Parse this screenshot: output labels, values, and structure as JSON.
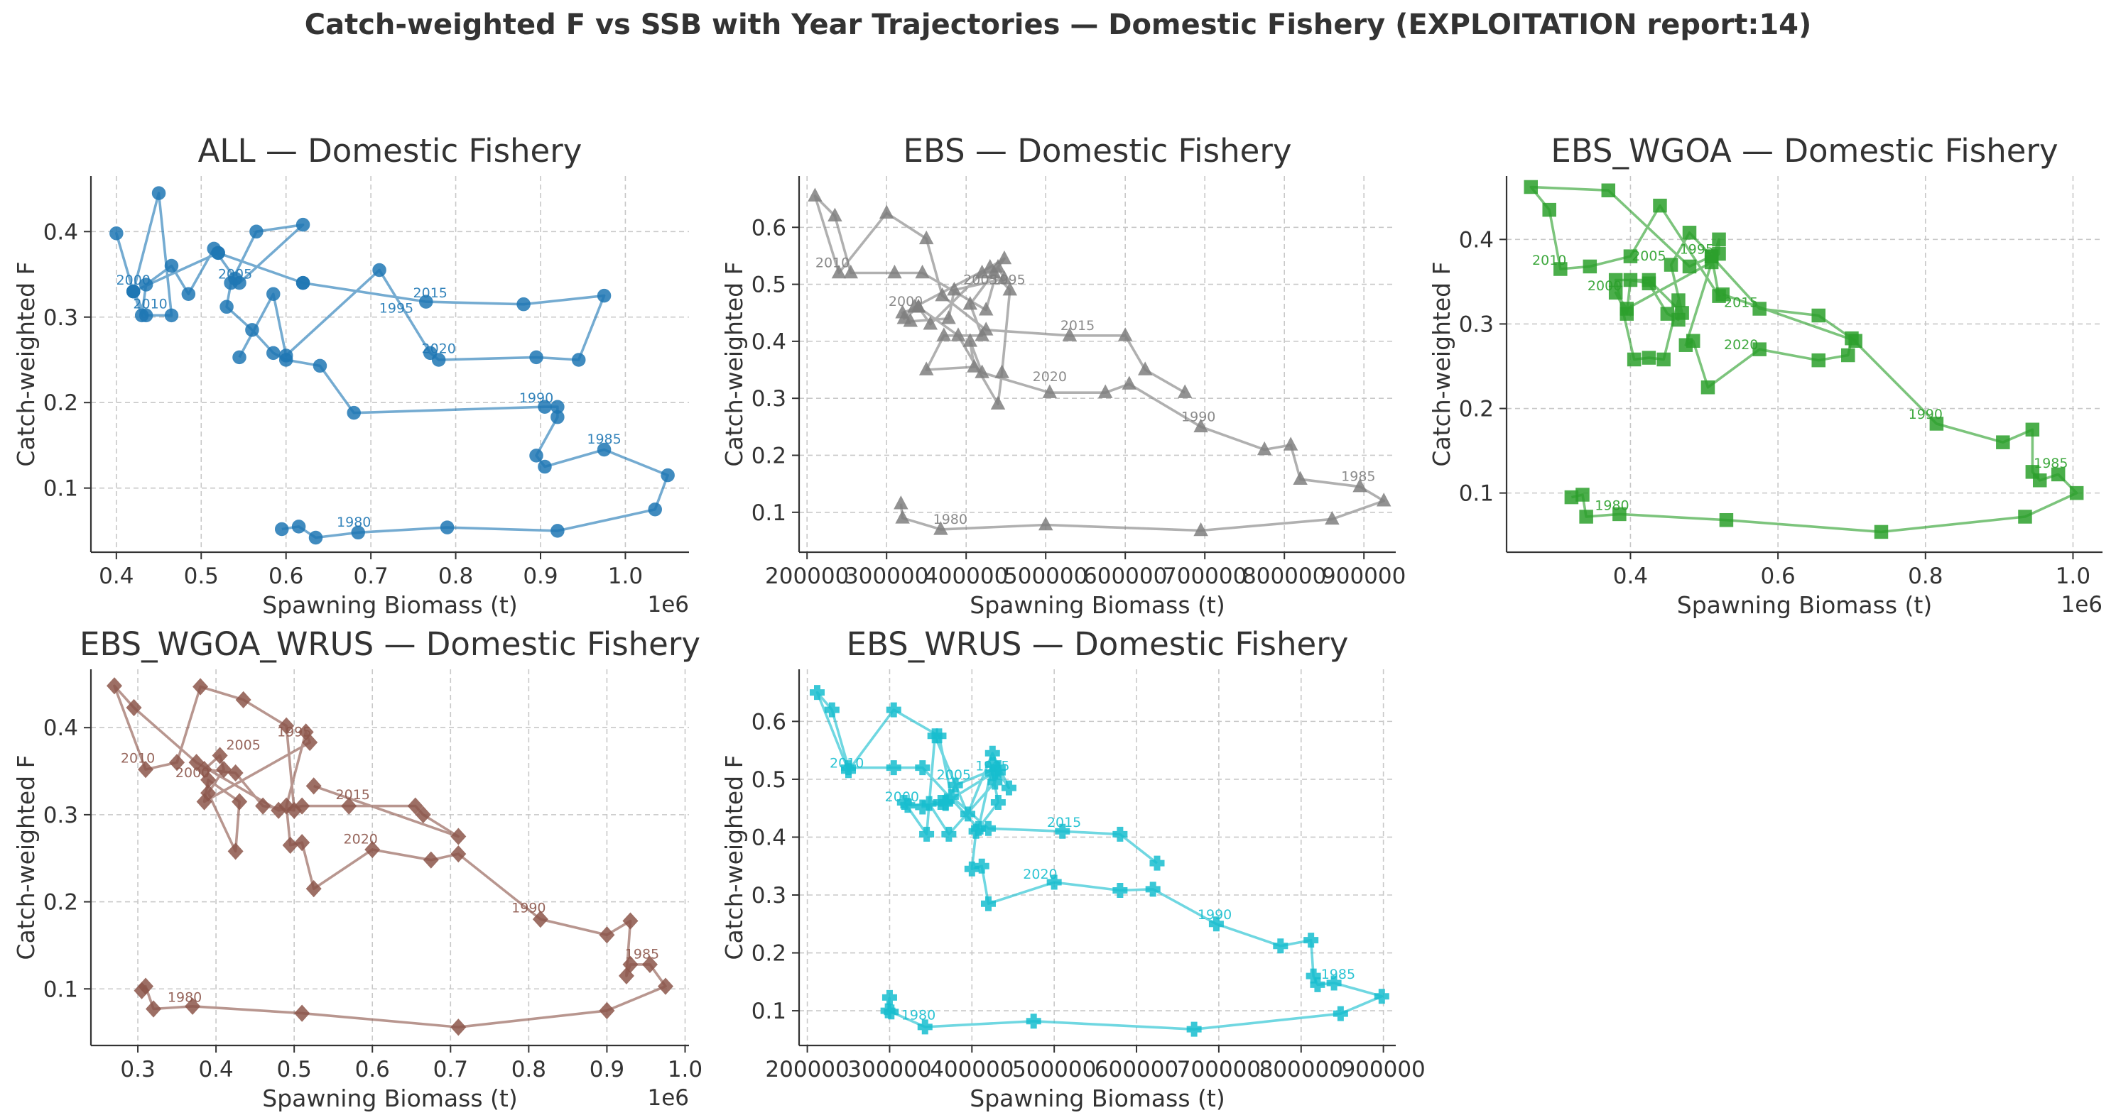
{
  "suptitle": "Catch-weighted F vs SSB with Year Trajectories — Domestic Fishery (EXPLOITATION report:14)",
  "chart_data": [
    {
      "type": "line",
      "title": "ALL — Domestic Fishery",
      "xlabel": "Spawning Biomass (t)",
      "ylabel": "Catch-weighted F",
      "x_offset_label": "1e6",
      "xlim": [
        0.37,
        1.075
      ],
      "ylim": [
        0.025,
        0.465
      ],
      "xticks": [
        0.4,
        0.5,
        0.6,
        0.7,
        0.8,
        0.9,
        1.0
      ],
      "xtick_labels": [
        "0.4",
        "0.5",
        "0.6",
        "0.7",
        "0.8",
        "0.9",
        "1.0"
      ],
      "yticks": [
        0.1,
        0.2,
        0.3,
        0.4
      ],
      "ytick_labels": [
        "0.1",
        "0.2",
        "0.3",
        "0.4"
      ],
      "grid": true,
      "color": "#1f77b4",
      "marker": "circle",
      "series": [
        {
          "x": [
            0.595,
            0.615,
            0.635,
            0.685,
            0.79,
            0.92,
            1.035,
            1.05,
            0.975,
            0.905,
            0.895,
            0.92,
            0.92,
            0.905,
            0.68,
            0.64,
            0.6,
            0.585,
            0.56,
            0.53,
            0.535,
            0.565,
            0.62,
            0.545,
            0.54,
            0.515,
            0.485,
            0.465,
            0.435,
            0.43,
            0.42,
            0.45,
            0.465,
            0.435,
            0.42,
            0.4,
            0.42,
            0.52,
            0.52,
            0.62,
            0.62,
            0.765,
            0.88,
            0.975,
            0.945,
            0.895,
            0.78,
            0.77,
            0.71,
            0.6,
            0.585,
            0.545
          ],
          "y": [
            0.052,
            0.055,
            0.042,
            0.048,
            0.054,
            0.05,
            0.075,
            0.115,
            0.145,
            0.125,
            0.138,
            0.183,
            0.195,
            0.195,
            0.188,
            0.243,
            0.25,
            0.258,
            0.285,
            0.312,
            0.34,
            0.4,
            0.408,
            0.34,
            0.345,
            0.38,
            0.327,
            0.36,
            0.338,
            0.302,
            0.33,
            0.445,
            0.302,
            0.302,
            0.33,
            0.398,
            0.33,
            0.375,
            0.375,
            0.34,
            0.34,
            0.318,
            0.315,
            0.325,
            0.25,
            0.253,
            0.25,
            0.258,
            0.355,
            0.255,
            0.327,
            0.253
          ]
        }
      ],
      "annotations": [
        {
          "text": "1980",
          "x": 0.68,
          "y": 0.055
        },
        {
          "text": "1985",
          "x": 0.975,
          "y": 0.152
        },
        {
          "text": "1990",
          "x": 0.895,
          "y": 0.2
        },
        {
          "text": "1995",
          "x": 0.73,
          "y": 0.305
        },
        {
          "text": "2000",
          "x": 0.42,
          "y": 0.338
        },
        {
          "text": "2005",
          "x": 0.54,
          "y": 0.345
        },
        {
          "text": "2010",
          "x": 0.44,
          "y": 0.31
        },
        {
          "text": "2015",
          "x": 0.77,
          "y": 0.323
        },
        {
          "text": "2020",
          "x": 0.78,
          "y": 0.258
        }
      ]
    },
    {
      "type": "line",
      "title": "EBS — Domestic Fishery",
      "xlabel": "Spawning Biomass (t)",
      "ylabel": "Catch-weighted F",
      "xlim": [
        190000,
        940000
      ],
      "ylim": [
        0.03,
        0.69
      ],
      "xticks": [
        200000,
        300000,
        400000,
        500000,
        600000,
        700000,
        800000,
        900000
      ],
      "xtick_labels": [
        "200000",
        "300000",
        "400000",
        "500000",
        "600000",
        "700000",
        "800000",
        "900000"
      ],
      "yticks": [
        0.1,
        0.2,
        0.3,
        0.4,
        0.5,
        0.6
      ],
      "ytick_labels": [
        "0.1",
        "0.2",
        "0.3",
        "0.4",
        "0.5",
        "0.6"
      ],
      "grid": true,
      "color": "#7f7f7f",
      "marker": "triangle",
      "series": [
        {
          "x": [
            318000,
            320000,
            368000,
            500000,
            695000,
            860000,
            925000,
            895000,
            820000,
            808000,
            775000,
            695000,
            605000,
            575000,
            505000,
            420000,
            405000,
            410000,
            350000,
            372000,
            420000,
            405000,
            448000,
            430000,
            335000,
            322000,
            340000,
            390000,
            440000,
            445000,
            455000,
            435000,
            420000,
            355000,
            340000,
            320000,
            330000,
            378000,
            385000,
            448000,
            440000,
            425000,
            345000,
            310000,
            255000,
            235000,
            210000,
            240000,
            300000,
            350000,
            370000,
            425000,
            530000,
            600000,
            625000,
            675000
          ],
          "y": [
            0.115,
            0.09,
            0.07,
            0.078,
            0.068,
            0.088,
            0.12,
            0.145,
            0.158,
            0.218,
            0.21,
            0.25,
            0.325,
            0.31,
            0.31,
            0.345,
            0.4,
            0.355,
            0.35,
            0.41,
            0.41,
            0.465,
            0.545,
            0.53,
            0.46,
            0.44,
            0.46,
            0.41,
            0.29,
            0.345,
            0.49,
            0.52,
            0.52,
            0.43,
            0.46,
            0.45,
            0.435,
            0.44,
            0.49,
            0.51,
            0.53,
            0.455,
            0.52,
            0.52,
            0.52,
            0.62,
            0.655,
            0.52,
            0.625,
            0.58,
            0.48,
            0.42,
            0.41,
            0.41,
            0.35,
            0.31
          ]
        }
      ],
      "annotations": [
        {
          "text": "1980",
          "x": 380000,
          "y": 0.08
        },
        {
          "text": "1985",
          "x": 893000,
          "y": 0.155
        },
        {
          "text": "1990",
          "x": 692000,
          "y": 0.26
        },
        {
          "text": "1995",
          "x": 453000,
          "y": 0.5
        },
        {
          "text": "2000",
          "x": 324000,
          "y": 0.462
        },
        {
          "text": "2005",
          "x": 418000,
          "y": 0.5
        },
        {
          "text": "2010",
          "x": 232000,
          "y": 0.53
        },
        {
          "text": "2015",
          "x": 540000,
          "y": 0.42
        },
        {
          "text": "2020",
          "x": 505000,
          "y": 0.33
        }
      ]
    },
    {
      "type": "line",
      "title": "EBS_WGOA — Domestic Fishery",
      "xlabel": "Spawning Biomass (t)",
      "ylabel": "Catch-weighted F",
      "x_offset_label": "1e6",
      "xlim": [
        0.232,
        1.04
      ],
      "ylim": [
        0.03,
        0.475
      ],
      "xticks": [
        0.4,
        0.6,
        0.8,
        1.0
      ],
      "xtick_labels": [
        "0.4",
        "0.6",
        "0.8",
        "1.0"
      ],
      "yticks": [
        0.1,
        0.2,
        0.3,
        0.4
      ],
      "ytick_labels": [
        "0.1",
        "0.2",
        "0.3",
        "0.4"
      ],
      "grid": true,
      "color": "#2ca02c",
      "marker": "square",
      "series": [
        {
          "x": [
            0.32,
            0.335,
            0.34,
            0.385,
            0.53,
            0.74,
            0.935,
            1.005,
            0.98,
            0.955,
            0.945,
            0.945,
            0.905,
            0.815,
            0.7,
            0.695,
            0.655,
            0.575,
            0.505,
            0.485,
            0.475,
            0.52,
            0.52,
            0.51,
            0.395,
            0.38,
            0.395,
            0.4,
            0.425,
            0.45,
            0.465,
            0.465,
            0.445,
            0.425,
            0.405,
            0.38,
            0.425,
            0.47,
            0.455,
            0.48,
            0.51,
            0.52,
            0.44,
            0.4,
            0.345,
            0.305,
            0.29,
            0.265,
            0.37,
            0.48,
            0.51,
            0.575,
            0.655,
            0.705,
            0.525
          ],
          "y": [
            0.095,
            0.098,
            0.072,
            0.075,
            0.068,
            0.054,
            0.072,
            0.1,
            0.122,
            0.115,
            0.125,
            0.175,
            0.16,
            0.182,
            0.283,
            0.263,
            0.257,
            0.27,
            0.225,
            0.28,
            0.275,
            0.4,
            0.383,
            0.373,
            0.318,
            0.337,
            0.312,
            0.352,
            0.348,
            0.312,
            0.305,
            0.328,
            0.258,
            0.26,
            0.258,
            0.352,
            0.352,
            0.313,
            0.37,
            0.408,
            0.38,
            0.333,
            0.44,
            0.38,
            0.368,
            0.365,
            0.435,
            0.462,
            0.458,
            0.368,
            0.38,
            0.318,
            0.31,
            0.28,
            0.335
          ]
        }
      ],
      "annotations": [
        {
          "text": "1980",
          "x": 0.375,
          "y": 0.08
        },
        {
          "text": "1985",
          "x": 0.97,
          "y": 0.13
        },
        {
          "text": "1990",
          "x": 0.8,
          "y": 0.188
        },
        {
          "text": "1995",
          "x": 0.49,
          "y": 0.383
        },
        {
          "text": "2000",
          "x": 0.365,
          "y": 0.34
        },
        {
          "text": "2005",
          "x": 0.425,
          "y": 0.375
        },
        {
          "text": "2010",
          "x": 0.29,
          "y": 0.37
        },
        {
          "text": "2015",
          "x": 0.55,
          "y": 0.32
        },
        {
          "text": "2020",
          "x": 0.55,
          "y": 0.27
        }
      ]
    },
    {
      "type": "line",
      "title": "EBS_WGOA_WRUS — Domestic Fishery",
      "xlabel": "Spawning Biomass (t)",
      "ylabel": "Catch-weighted F",
      "x_offset_label": "1e6",
      "xlim": [
        0.24,
        1.005
      ],
      "ylim": [
        0.035,
        0.467
      ],
      "xticks": [
        0.3,
        0.4,
        0.5,
        0.6,
        0.7,
        0.8,
        0.9,
        1.0
      ],
      "xtick_labels": [
        "0.3",
        "0.4",
        "0.5",
        "0.6",
        "0.7",
        "0.8",
        "0.9",
        "1.0"
      ],
      "yticks": [
        0.1,
        0.2,
        0.3,
        0.4
      ],
      "ytick_labels": [
        "0.1",
        "0.2",
        "0.3",
        "0.4"
      ],
      "grid": true,
      "color": "#8c564b",
      "marker": "diamond",
      "series": [
        {
          "x": [
            0.305,
            0.31,
            0.32,
            0.37,
            0.51,
            0.71,
            0.9,
            0.975,
            0.955,
            0.93,
            0.925,
            0.93,
            0.9,
            0.815,
            0.71,
            0.675,
            0.6,
            0.525,
            0.51,
            0.495,
            0.49,
            0.515,
            0.52,
            0.385,
            0.39,
            0.43,
            0.425,
            0.39,
            0.41,
            0.405,
            0.385,
            0.425,
            0.46,
            0.5,
            0.49,
            0.435,
            0.38,
            0.35,
            0.31,
            0.27,
            0.295,
            0.375,
            0.48,
            0.51,
            0.57,
            0.655,
            0.665,
            0.71,
            0.525
          ],
          "y": [
            0.098,
            0.103,
            0.077,
            0.08,
            0.072,
            0.056,
            0.075,
            0.103,
            0.128,
            0.128,
            0.115,
            0.178,
            0.162,
            0.18,
            0.255,
            0.248,
            0.26,
            0.215,
            0.268,
            0.265,
            0.31,
            0.395,
            0.383,
            0.315,
            0.34,
            0.315,
            0.258,
            0.325,
            0.352,
            0.368,
            0.352,
            0.348,
            0.31,
            0.305,
            0.402,
            0.432,
            0.447,
            0.36,
            0.352,
            0.448,
            0.423,
            0.36,
            0.305,
            0.31,
            0.31,
            0.31,
            0.3,
            0.275,
            0.333
          ]
        }
      ],
      "annotations": [
        {
          "text": "1980",
          "x": 0.36,
          "y": 0.085
        },
        {
          "text": "1985",
          "x": 0.945,
          "y": 0.135
        },
        {
          "text": "1990",
          "x": 0.8,
          "y": 0.188
        },
        {
          "text": "1995",
          "x": 0.5,
          "y": 0.39
        },
        {
          "text": "2000",
          "x": 0.37,
          "y": 0.343
        },
        {
          "text": "2005",
          "x": 0.435,
          "y": 0.375
        },
        {
          "text": "2010",
          "x": 0.3,
          "y": 0.36
        },
        {
          "text": "2015",
          "x": 0.575,
          "y": 0.318
        },
        {
          "text": "2020",
          "x": 0.585,
          "y": 0.267
        }
      ]
    },
    {
      "type": "line",
      "title": "EBS_WRUS — Domestic Fishery",
      "xlabel": "Spawning Biomass (t)",
      "ylabel": "Catch-weighted F",
      "xlim": [
        190000,
        915000
      ],
      "ylim": [
        0.04,
        0.69
      ],
      "xticks": [
        200000,
        300000,
        400000,
        500000,
        600000,
        700000,
        800000,
        900000
      ],
      "xtick_labels": [
        "200000",
        "300000",
        "400000",
        "500000",
        "600000",
        "700000",
        "800000",
        "900000"
      ],
      "yticks": [
        0.1,
        0.2,
        0.3,
        0.4,
        0.5,
        0.6
      ],
      "ytick_labels": [
        "0.1",
        "0.2",
        "0.3",
        "0.4",
        "0.5",
        "0.6"
      ],
      "grid": true,
      "color": "#17becf",
      "marker": "plus",
      "series": [
        {
          "x": [
            300000,
            298000,
            302000,
            343000,
            475000,
            670000,
            848000,
            898000,
            840000,
            820000,
            815000,
            812000,
            775000,
            697000,
            620000,
            580000,
            500000,
            420000,
            412000,
            400000,
            405000,
            432000,
            425000,
            368000,
            362000,
            340000,
            348000,
            372000,
            428000,
            432000,
            445000,
            425000,
            395000,
            355000,
            345000,
            318000,
            322000,
            368000,
            380000,
            432000,
            425000,
            408000,
            340000,
            305000,
            250000,
            230000,
            212000,
            250000,
            305000,
            360000,
            375000,
            420000,
            510000,
            580000,
            625000
          ],
          "y": [
            0.123,
            0.1,
            0.098,
            0.072,
            0.082,
            0.068,
            0.095,
            0.125,
            0.148,
            0.145,
            0.16,
            0.222,
            0.212,
            0.25,
            0.31,
            0.308,
            0.322,
            0.285,
            0.35,
            0.345,
            0.41,
            0.46,
            0.51,
            0.46,
            0.46,
            0.452,
            0.458,
            0.405,
            0.495,
            0.512,
            0.485,
            0.545,
            0.44,
            0.575,
            0.405,
            0.46,
            0.455,
            0.458,
            0.49,
            0.52,
            0.525,
            0.415,
            0.52,
            0.52,
            0.52,
            0.62,
            0.65,
            0.515,
            0.62,
            0.575,
            0.47,
            0.415,
            0.41,
            0.405,
            0.355
          ]
        }
      ],
      "annotations": [
        {
          "text": "1980",
          "x": 335000,
          "y": 0.085
        },
        {
          "text": "1985",
          "x": 845000,
          "y": 0.155
        },
        {
          "text": "1990",
          "x": 695000,
          "y": 0.258
        },
        {
          "text": "1995",
          "x": 425000,
          "y": 0.515
        },
        {
          "text": "2000",
          "x": 315000,
          "y": 0.462
        },
        {
          "text": "2005",
          "x": 378000,
          "y": 0.5
        },
        {
          "text": "2010",
          "x": 248000,
          "y": 0.52
        },
        {
          "text": "2015",
          "x": 512000,
          "y": 0.418
        },
        {
          "text": "2020",
          "x": 483000,
          "y": 0.328
        }
      ]
    }
  ]
}
